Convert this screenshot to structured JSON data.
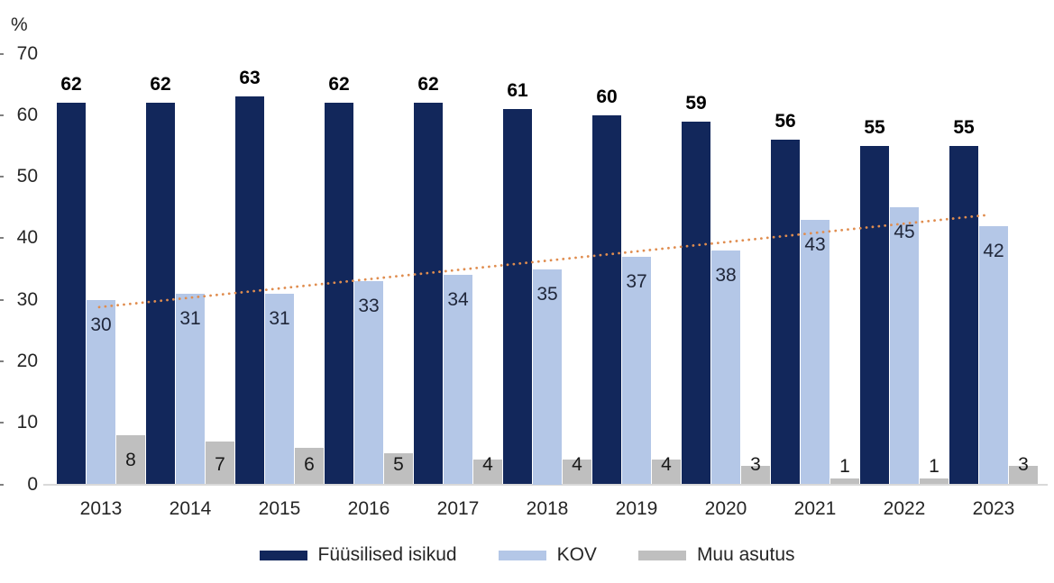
{
  "chart_data": {
    "type": "bar",
    "title": "",
    "y_axis_unit_label": "%",
    "categories": [
      "2013",
      "2014",
      "2015",
      "2016",
      "2017",
      "2018",
      "2019",
      "2020",
      "2021",
      "2022",
      "2023"
    ],
    "series": [
      {
        "name": "Füüsilised isikud",
        "color": "#12275b",
        "values": [
          62,
          62,
          63,
          62,
          62,
          61,
          60,
          59,
          56,
          55,
          55
        ]
      },
      {
        "name": "KOV",
        "color": "#b4c7e7",
        "values": [
          30,
          31,
          31,
          33,
          34,
          35,
          37,
          38,
          43,
          45,
          42
        ]
      },
      {
        "name": "Muu asutus",
        "color": "#bfbfbf",
        "values": [
          8,
          7,
          6,
          5,
          4,
          4,
          4,
          3,
          1,
          1,
          3
        ]
      }
    ],
    "trendline": {
      "applies_to_series": "KOV",
      "type": "linear",
      "style": "dotted",
      "color": "#e08d4f",
      "start_value": 28.8,
      "end_value": 43.8
    },
    "y_axis": {
      "min": 0,
      "max": 70,
      "ticks": [
        0,
        10,
        20,
        30,
        40,
        50,
        60,
        70
      ]
    },
    "x_axis": {
      "label": ""
    },
    "legend": {
      "position": "bottom",
      "entries": [
        "Füüsilised isikud",
        "KOV",
        "Muu asutus"
      ]
    },
    "grid": "off",
    "data_labels": "on",
    "axis_line_color": "#d9d9d9"
  }
}
